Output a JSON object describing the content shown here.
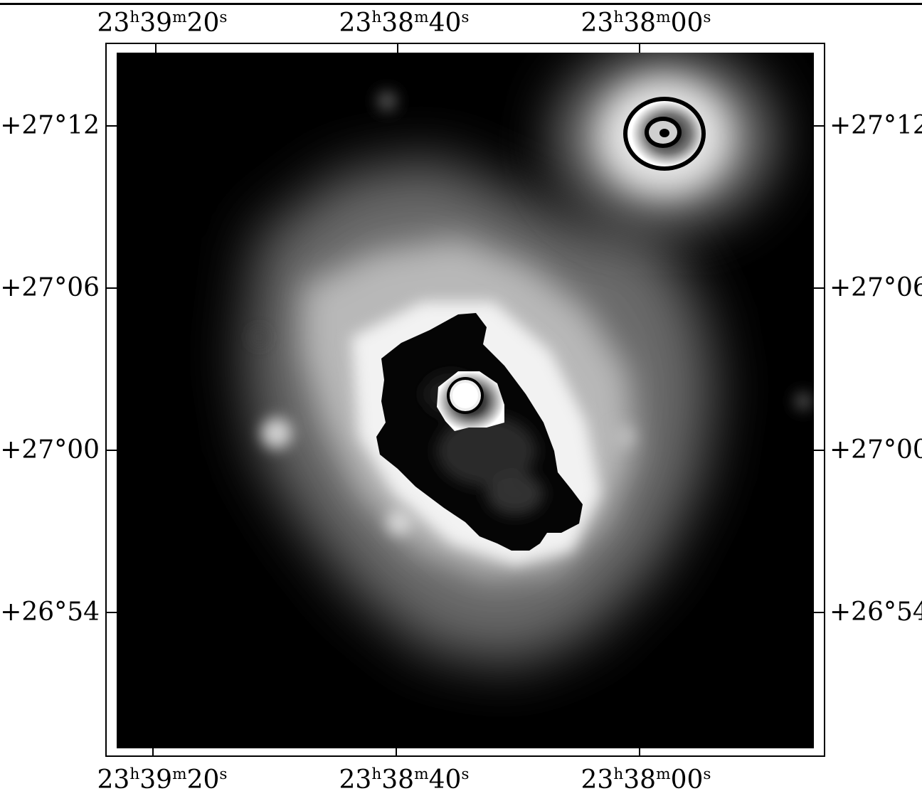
{
  "axes": {
    "ra_ticks_top": [
      "23h39m20s",
      "23h38m40s",
      "23h38m00s"
    ],
    "ra_ticks_bottom": [
      "23h39m20s",
      "23h38m40s",
      "23h38m00s"
    ],
    "dec_ticks_left": [
      "+27°12",
      "+27°06",
      "+27°00",
      "+26°54"
    ],
    "dec_ticks_right": [
      "+27°12",
      "+27°06",
      "+27°00",
      "+26°54"
    ]
  },
  "image": {
    "description_icon": "astronomical-greyscale-map",
    "colormap": "greyscale with wraparound",
    "background_color": "#000000"
  }
}
